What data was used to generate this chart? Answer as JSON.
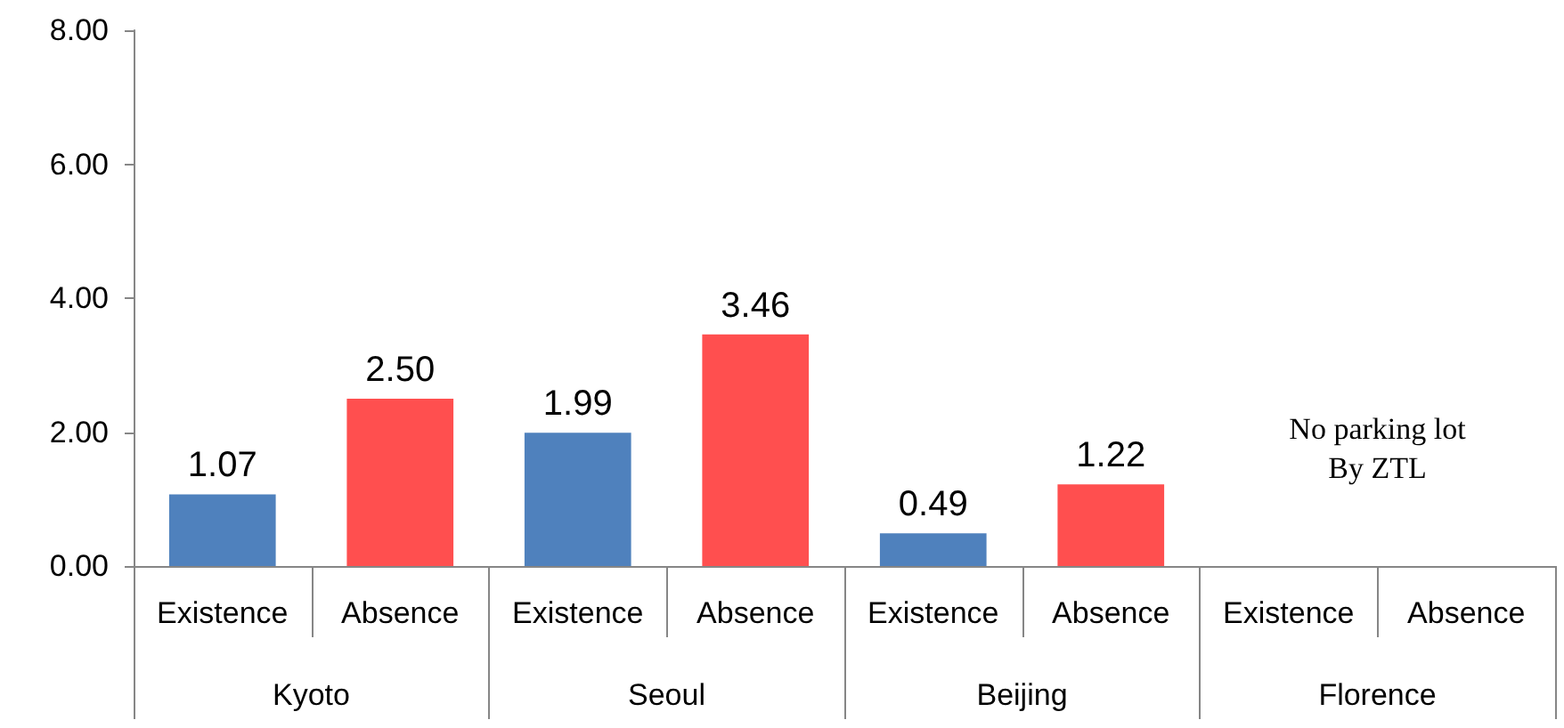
{
  "chart_data": {
    "type": "bar",
    "categories": [
      "Existence",
      "Absence",
      "Existence",
      "Absence",
      "Existence",
      "Absence",
      "Existence",
      "Absence"
    ],
    "values": [
      1.07,
      2.5,
      1.99,
      3.46,
      0.49,
      1.22,
      null,
      null
    ],
    "colors": [
      "#4f81bd",
      "#ff4f4f",
      "#4f81bd",
      "#ff4f4f",
      "#4f81bd",
      "#ff4f4f",
      "#4f81bd",
      "#ff4f4f"
    ],
    "ylim": [
      0,
      8
    ],
    "yticks": [
      {
        "value": 0,
        "label": "0.00"
      },
      {
        "value": 2,
        "label": "2.00"
      },
      {
        "value": 4,
        "label": "4.00"
      },
      {
        "value": 6,
        "label": "6.00"
      },
      {
        "value": 8,
        "label": "8.00"
      }
    ],
    "value_labels": [
      "1.07",
      "2.50",
      "1.99",
      "3.46",
      "0.49",
      "1.22",
      null,
      null
    ],
    "grid": false,
    "annotations": [
      "Kyoto",
      "Seoul",
      "Beijing",
      "Florence",
      "No parking lot\nBy ZTL"
    ]
  }
}
